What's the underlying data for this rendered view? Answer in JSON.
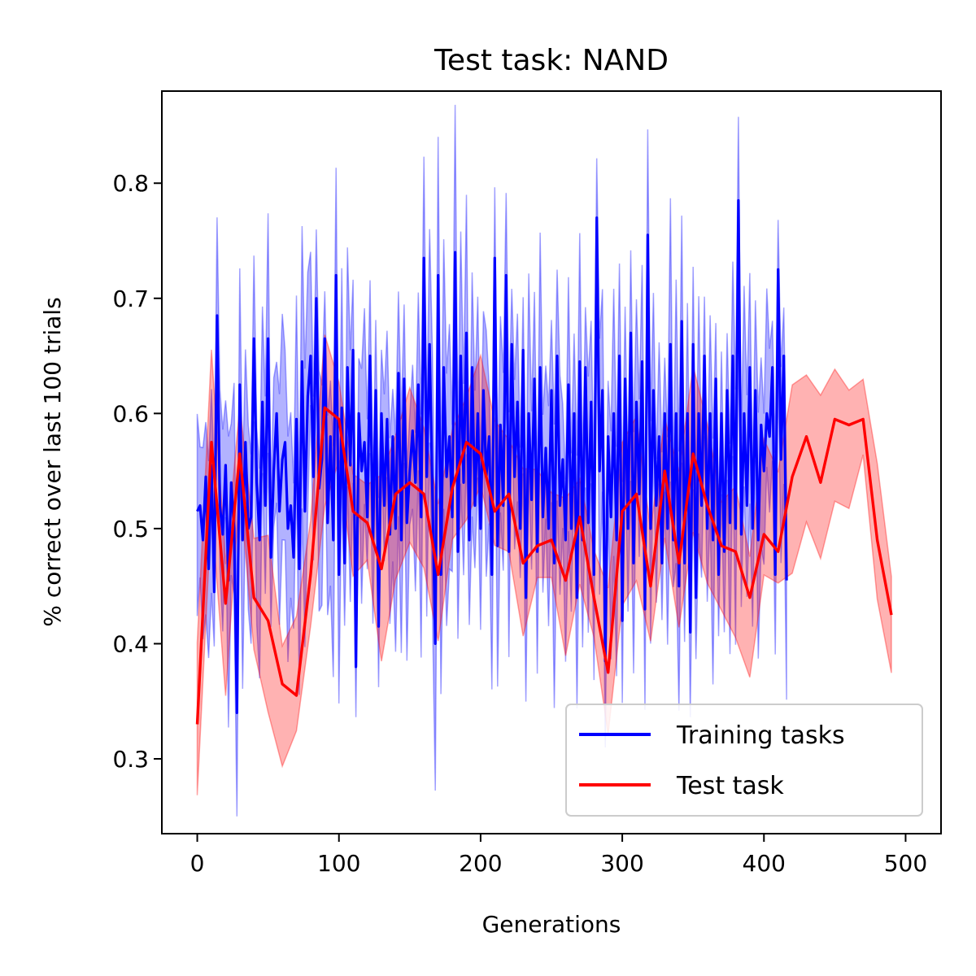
{
  "chart_data": {
    "type": "line",
    "title": "Test task: NAND",
    "xlabel": "Generations",
    "ylabel": "% correct over last 100 trials",
    "xlim": [
      -25,
      525
    ],
    "ylim": [
      0.235,
      0.88
    ],
    "xticks": [
      0,
      100,
      200,
      300,
      400,
      500
    ],
    "yticks": [
      0.3,
      0.4,
      0.5,
      0.6,
      0.7,
      0.8
    ],
    "xtick_labels": [
      "0",
      "100",
      "200",
      "300",
      "400",
      "500"
    ],
    "ytick_labels": [
      "0.3",
      "0.4",
      "0.5",
      "0.6",
      "0.7",
      "0.8"
    ],
    "grid": false,
    "legend_position": "lower-right",
    "series": [
      {
        "name": "Training tasks",
        "color": "#0000ff",
        "x_start": 0,
        "x_step": 2,
        "values": [
          0.515,
          0.52,
          0.49,
          0.545,
          0.465,
          0.555,
          0.445,
          0.685,
          0.52,
          0.495,
          0.555,
          0.455,
          0.54,
          0.5,
          0.34,
          0.625,
          0.49,
          0.575,
          0.5,
          0.51,
          0.665,
          0.54,
          0.49,
          0.61,
          0.52,
          0.665,
          0.475,
          0.55,
          0.6,
          0.515,
          0.56,
          0.575,
          0.5,
          0.52,
          0.475,
          0.595,
          0.465,
          0.645,
          0.515,
          0.615,
          0.65,
          0.545,
          0.7,
          0.535,
          0.56,
          0.665,
          0.505,
          0.58,
          0.49,
          0.72,
          0.46,
          0.605,
          0.47,
          0.64,
          0.555,
          0.655,
          0.38,
          0.6,
          0.55,
          0.575,
          0.51,
          0.65,
          0.49,
          0.62,
          0.415,
          0.6,
          0.52,
          0.595,
          0.495,
          0.58,
          0.5,
          0.635,
          0.49,
          0.63,
          0.505,
          0.55,
          0.585,
          0.54,
          0.625,
          0.51,
          0.735,
          0.545,
          0.66,
          0.53,
          0.4,
          0.72,
          0.46,
          0.64,
          0.545,
          0.58,
          0.51,
          0.74,
          0.48,
          0.65,
          0.54,
          0.67,
          0.49,
          0.64,
          0.52,
          0.6,
          0.5,
          0.62,
          0.545,
          0.58,
          0.46,
          0.735,
          0.485,
          0.59,
          0.52,
          0.72,
          0.48,
          0.66,
          0.545,
          0.61,
          0.5,
          0.655,
          0.44,
          0.6,
          0.525,
          0.63,
          0.48,
          0.64,
          0.51,
          0.57,
          0.5,
          0.62,
          0.47,
          0.65,
          0.52,
          0.56,
          0.49,
          0.625,
          0.5,
          0.6,
          0.44,
          0.645,
          0.49,
          0.64,
          0.505,
          0.61,
          0.46,
          0.77,
          0.55,
          0.62,
          0.385,
          0.58,
          0.51,
          0.6,
          0.49,
          0.65,
          0.42,
          0.63,
          0.5,
          0.67,
          0.47,
          0.61,
          0.53,
          0.645,
          0.43,
          0.755,
          0.5,
          0.62,
          0.52,
          0.58,
          0.47,
          0.6,
          0.5,
          0.66,
          0.49,
          0.6,
          0.45,
          0.68,
          0.47,
          0.6,
          0.41,
          0.66,
          0.44,
          0.6,
          0.52,
          0.65,
          0.5,
          0.6,
          0.49,
          0.63,
          0.46,
          0.6,
          0.48,
          0.62,
          0.505,
          0.65,
          0.5,
          0.785,
          0.495,
          0.6,
          0.52,
          0.64,
          0.5,
          0.62,
          0.49,
          0.59,
          0.55,
          0.6,
          0.58,
          0.64,
          0.46,
          0.725,
          0.56,
          0.65,
          0.455
        ]
      },
      {
        "name": "Test task",
        "color": "#ff0000",
        "x": [
          0,
          10,
          20,
          30,
          40,
          50,
          60,
          70,
          80,
          90,
          100,
          110,
          120,
          130,
          140,
          150,
          160,
          170,
          180,
          190,
          200,
          210,
          220,
          230,
          240,
          250,
          260,
          270,
          280,
          290,
          300,
          310,
          320,
          330,
          340,
          350,
          360,
          370,
          380,
          390,
          400,
          410,
          420,
          430,
          440,
          450,
          460,
          470,
          480,
          490
        ],
        "values": [
          0.33,
          0.575,
          0.435,
          0.565,
          0.44,
          0.42,
          0.365,
          0.355,
          0.46,
          0.605,
          0.595,
          0.515,
          0.505,
          0.465,
          0.53,
          0.54,
          0.53,
          0.46,
          0.535,
          0.575,
          0.565,
          0.515,
          0.53,
          0.47,
          0.485,
          0.49,
          0.455,
          0.51,
          0.44,
          0.375,
          0.515,
          0.53,
          0.45,
          0.55,
          0.47,
          0.565,
          0.52,
          0.485,
          0.48,
          0.44,
          0.495,
          0.48,
          0.545,
          0.58,
          0.54,
          0.595,
          0.59,
          0.595,
          0.49,
          0.425
        ]
      }
    ],
    "band_alpha": 0.3
  }
}
